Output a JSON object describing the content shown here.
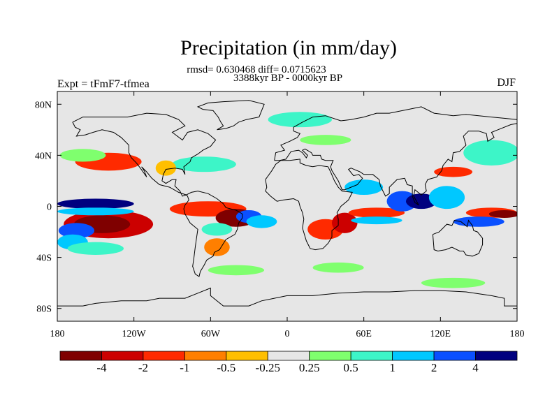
{
  "title": "Precipitation (in mm/day)",
  "stats_line": "rmsd= 0.630468  diff= 0.0715623",
  "period_line": "3388kyr BP - 0000kyr BP",
  "experiment_label": "Expt = tFmF7-tfmea",
  "season_label": "DJF",
  "map": {
    "projection": "cylindrical equidistant",
    "lon_range": [
      -180,
      180
    ],
    "lat_range": [
      -90,
      90
    ],
    "background_color": "#e6e6e6",
    "lon_ticks": [
      {
        "value": -180,
        "label": "180"
      },
      {
        "value": -120,
        "label": "120W"
      },
      {
        "value": -60,
        "label": "60W"
      },
      {
        "value": 0,
        "label": "0"
      },
      {
        "value": 60,
        "label": "60E"
      },
      {
        "value": 120,
        "label": "120E"
      },
      {
        "value": 180,
        "label": "180"
      }
    ],
    "lat_ticks": [
      {
        "value": 80,
        "label": "80N"
      },
      {
        "value": 40,
        "label": "40N"
      },
      {
        "value": 0,
        "label": "0"
      },
      {
        "value": -40,
        "label": "40S"
      },
      {
        "value": -80,
        "label": "80S"
      }
    ]
  },
  "colorbar": {
    "colors": [
      "#7f0000",
      "#cc0000",
      "#ff2a00",
      "#ff7f00",
      "#ffbf00",
      "#e6e6e6",
      "#7fff6e",
      "#3df5c8",
      "#00c8ff",
      "#0a50ff",
      "#00007f"
    ],
    "labels": [
      "-4",
      "-2",
      "-1",
      "-0.5",
      "-0.25",
      "0.25",
      "0.5",
      "1",
      "2",
      "4"
    ]
  },
  "anomalies": [
    {
      "lon": -140,
      "lat": -14,
      "rx": 35,
      "ry": 11,
      "level": 1
    },
    {
      "lon": -145,
      "lat": -14,
      "rx": 22,
      "ry": 7,
      "level": 0
    },
    {
      "lon": -165,
      "lat": -19,
      "rx": 14,
      "ry": 6,
      "level": 9
    },
    {
      "lon": -168,
      "lat": -28,
      "rx": 12,
      "ry": 6,
      "level": 8
    },
    {
      "lon": -150,
      "lat": 2,
      "rx": 30,
      "ry": 4,
      "level": 10
    },
    {
      "lon": -150,
      "lat": -4,
      "rx": 30,
      "ry": 3,
      "level": 8
    },
    {
      "lon": -140,
      "lat": 35,
      "rx": 26,
      "ry": 7,
      "level": 2
    },
    {
      "lon": -160,
      "lat": 40,
      "rx": 18,
      "ry": 5,
      "level": 6
    },
    {
      "lon": -150,
      "lat": -33,
      "rx": 22,
      "ry": 5,
      "level": 7
    },
    {
      "lon": -62,
      "lat": -2,
      "rx": 30,
      "ry": 6,
      "level": 2
    },
    {
      "lon": -40,
      "lat": -9,
      "rx": 16,
      "ry": 7,
      "level": 0
    },
    {
      "lon": -30,
      "lat": -8,
      "rx": 10,
      "ry": 5,
      "level": 9
    },
    {
      "lon": -55,
      "lat": -18,
      "rx": 12,
      "ry": 5,
      "level": 7
    },
    {
      "lon": -20,
      "lat": -12,
      "rx": 12,
      "ry": 5,
      "level": 8
    },
    {
      "lon": -55,
      "lat": -32,
      "rx": 10,
      "ry": 7,
      "level": 3
    },
    {
      "lon": -65,
      "lat": 33,
      "rx": 25,
      "ry": 6,
      "level": 7
    },
    {
      "lon": -95,
      "lat": 30,
      "rx": 8,
      "ry": 6,
      "level": 4
    },
    {
      "lon": 30,
      "lat": -18,
      "rx": 14,
      "ry": 8,
      "level": 2
    },
    {
      "lon": 45,
      "lat": -13,
      "rx": 10,
      "ry": 8,
      "level": 1
    },
    {
      "lon": 70,
      "lat": -5,
      "rx": 22,
      "ry": 4,
      "level": 2
    },
    {
      "lon": 70,
      "lat": -11,
      "rx": 20,
      "ry": 3,
      "level": 8
    },
    {
      "lon": 90,
      "lat": 4,
      "rx": 12,
      "ry": 8,
      "level": 9
    },
    {
      "lon": 105,
      "lat": 4,
      "rx": 12,
      "ry": 6,
      "level": 10
    },
    {
      "lon": 125,
      "lat": 7,
      "rx": 14,
      "ry": 9,
      "level": 8
    },
    {
      "lon": 160,
      "lat": -5,
      "rx": 20,
      "ry": 4,
      "level": 2
    },
    {
      "lon": 150,
      "lat": -12,
      "rx": 20,
      "ry": 4,
      "level": 9
    },
    {
      "lon": 170,
      "lat": -6,
      "rx": 12,
      "ry": 3,
      "level": 0
    },
    {
      "lon": 160,
      "lat": 42,
      "rx": 22,
      "ry": 10,
      "level": 7
    },
    {
      "lon": 130,
      "lat": 27,
      "rx": 15,
      "ry": 4,
      "level": 2
    },
    {
      "lon": 10,
      "lat": 68,
      "rx": 25,
      "ry": 6,
      "level": 7
    },
    {
      "lon": 30,
      "lat": 52,
      "rx": 20,
      "ry": 4,
      "level": 6
    },
    {
      "lon": 40,
      "lat": -48,
      "rx": 20,
      "ry": 4,
      "level": 6
    },
    {
      "lon": -40,
      "lat": -50,
      "rx": 22,
      "ry": 4,
      "level": 6
    },
    {
      "lon": 130,
      "lat": -60,
      "rx": 25,
      "ry": 4,
      "level": 6
    },
    {
      "lon": 60,
      "lat": 15,
      "rx": 15,
      "ry": 6,
      "level": 8
    }
  ]
}
